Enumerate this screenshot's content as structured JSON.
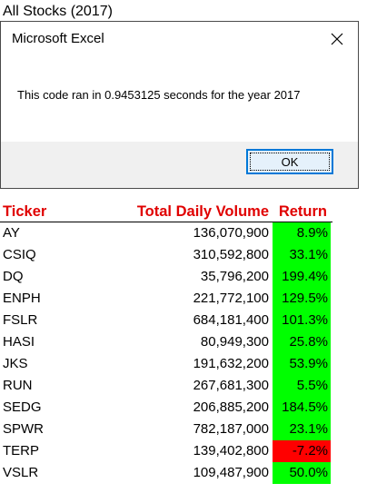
{
  "sheet_title": "All Stocks (2017)",
  "dialog": {
    "title": "Microsoft Excel",
    "message": "This code ran in 0.9453125 seconds for the year 2017",
    "ok_label": "OK"
  },
  "table": {
    "headers": {
      "ticker": "Ticker",
      "volume": "Total Daily Volume",
      "return": "Return"
    },
    "positive_color": "#00ff00",
    "negative_color": "#ff0000",
    "rows": [
      {
        "ticker": "AY",
        "volume": "136,070,900",
        "return": "8.9%",
        "positive": true
      },
      {
        "ticker": "CSIQ",
        "volume": "310,592,800",
        "return": "33.1%",
        "positive": true
      },
      {
        "ticker": "DQ",
        "volume": "35,796,200",
        "return": "199.4%",
        "positive": true
      },
      {
        "ticker": "ENPH",
        "volume": "221,772,100",
        "return": "129.5%",
        "positive": true
      },
      {
        "ticker": "FSLR",
        "volume": "684,181,400",
        "return": "101.3%",
        "positive": true
      },
      {
        "ticker": "HASI",
        "volume": "80,949,300",
        "return": "25.8%",
        "positive": true
      },
      {
        "ticker": "JKS",
        "volume": "191,632,200",
        "return": "53.9%",
        "positive": true
      },
      {
        "ticker": "RUN",
        "volume": "267,681,300",
        "return": "5.5%",
        "positive": true
      },
      {
        "ticker": "SEDG",
        "volume": "206,885,200",
        "return": "184.5%",
        "positive": true
      },
      {
        "ticker": "SPWR",
        "volume": "782,187,000",
        "return": "23.1%",
        "positive": true
      },
      {
        "ticker": "TERP",
        "volume": "139,402,800",
        "return": "-7.2%",
        "positive": false
      },
      {
        "ticker": "VSLR",
        "volume": "109,487,900",
        "return": "50.0%",
        "positive": true
      }
    ]
  }
}
